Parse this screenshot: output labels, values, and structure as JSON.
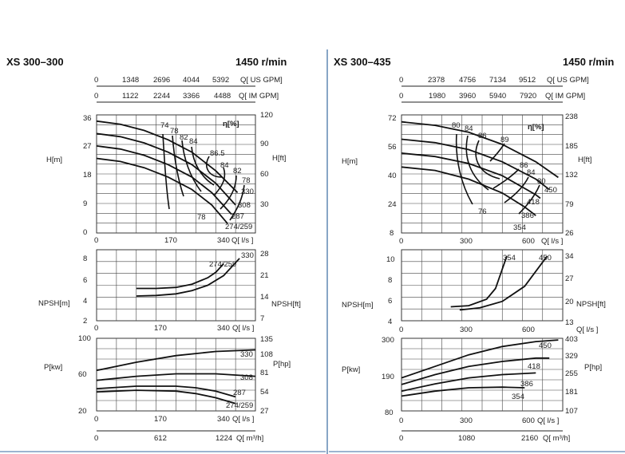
{
  "charts": [
    {
      "title": "XS 300–300",
      "speed": "1450 r/min",
      "scales": [
        {
          "ticks": [
            "0",
            "1348",
            "2696",
            "4044",
            "5392"
          ],
          "unit": "Q[ US GPM]"
        },
        {
          "ticks": [
            "0",
            "1122",
            "2244",
            "3366",
            "4488"
          ],
          "unit": "Q[ IM GPM]"
        }
      ],
      "m3h_ticks": [
        "0",
        "612",
        "1224"
      ],
      "m3h_unit": "Q[ m³/h]",
      "xticks_ls": [
        "0",
        "170",
        "340"
      ],
      "head": {
        "ylabel": "H[m]",
        "ylabel_ft": "H[ft]",
        "yticks": [
          "0",
          "9",
          "18",
          "27",
          "36"
        ],
        "yticks_ft": [
          "30",
          "60",
          "90",
          "120"
        ],
        "xunit": "Q[ l/s ]",
        "eff_label": "η[%]",
        "diam_labels": [
          "330",
          "308",
          "287",
          "274/259"
        ],
        "eff_labels": [
          "74",
          "78",
          "82",
          "84",
          "86.5",
          "84",
          "82",
          "78",
          "78"
        ]
      },
      "npsh": {
        "ylabel": "NPSH[m]",
        "ylabel_ft": "NPSH[ft]",
        "yticks": [
          "2",
          "4",
          "6",
          "8"
        ],
        "yticks_ft": [
          "7",
          "14",
          "21",
          "28"
        ],
        "xunit": "Q[ l/s ]",
        "labels": [
          "330",
          "274/259"
        ]
      },
      "power": {
        "ylabel": "P[kw]",
        "ylabel_hp": "P[hp]",
        "yticks": [
          "20",
          "60",
          "100"
        ],
        "yticks_hp": [
          "27",
          "54",
          "81",
          "108",
          "135"
        ],
        "xunit": "Q[ l/s ]",
        "labels": [
          "330",
          "308",
          "287",
          "274/259"
        ]
      }
    },
    {
      "title": "XS 300–435",
      "speed": "1450 r/min",
      "scales": [
        {
          "ticks": [
            "0",
            "2378",
            "4756",
            "7134",
            "9512"
          ],
          "unit": "Q[ US GPM]"
        },
        {
          "ticks": [
            "0",
            "1980",
            "3960",
            "5940",
            "7920"
          ],
          "unit": "Q[ IM GPM]"
        }
      ],
      "m3h_ticks": [
        "0",
        "1080",
        "2160"
      ],
      "m3h_unit": "Q[ m³/h]",
      "xticks_ls": [
        "0",
        "300",
        "600"
      ],
      "head": {
        "ylabel": "H[m]",
        "ylabel_ft": "H[ft]",
        "yticks": [
          "8",
          "24",
          "40",
          "56",
          "72"
        ],
        "yticks_ft": [
          "26",
          "79",
          "132",
          "185",
          "238"
        ],
        "xunit": "Q[ l/s ]",
        "eff_label": "η[%]",
        "diam_labels": [
          "450",
          "418",
          "386",
          "354"
        ],
        "eff_labels": [
          "80",
          "84",
          "86",
          "89",
          "86",
          "84",
          "80",
          "76"
        ]
      },
      "npsh": {
        "ylabel": "NPSH[m]",
        "ylabel_ft": "NPSH[ft]",
        "yticks": [
          "4",
          "6",
          "8",
          "10"
        ],
        "yticks_ft": [
          "13",
          "20",
          "27",
          "34"
        ],
        "xunit": "Q[ l/s ]",
        "labels": [
          "354",
          "450"
        ]
      },
      "power": {
        "ylabel": "P[kw]",
        "ylabel_hp": "P[hp]",
        "yticks": [
          "80",
          "190",
          "300"
        ],
        "yticks_hp": [
          "107",
          "181",
          "255",
          "329",
          "403"
        ],
        "xunit": "Q[ l/s ]",
        "labels": [
          "450",
          "418",
          "386",
          "354"
        ]
      }
    }
  ],
  "chart_data": [
    {
      "type": "line",
      "title": "XS 300–300",
      "subtitle": "1450 r/min",
      "xlabel": "Q[ l/s ]",
      "xlim": [
        0,
        400
      ],
      "panels": [
        {
          "name": "H[m]",
          "ylim": [
            0,
            38
          ],
          "series": [
            {
              "name": "330",
              "x": [
                0,
                60,
                120,
                180,
                240,
                300,
                355
              ],
              "y": [
                36,
                35,
                33,
                30,
                26,
                20,
                13
              ]
            },
            {
              "name": "308",
              "x": [
                0,
                60,
                120,
                180,
                240,
                300,
                350
              ],
              "y": [
                32,
                31,
                29,
                26,
                22,
                16,
                9
              ]
            },
            {
              "name": "287",
              "x": [
                0,
                60,
                120,
                180,
                240,
                290,
                340
              ],
              "y": [
                28,
                27,
                25,
                22,
                18,
                13,
                6
              ]
            },
            {
              "name": "274/259",
              "x": [
                0,
                60,
                120,
                180,
                240,
                290,
                330
              ],
              "y": [
                24,
                23,
                21,
                18,
                14,
                9,
                3
              ]
            }
          ]
        },
        {
          "name": "NPSH[m]",
          "ylim": [
            2,
            8.6
          ],
          "series": [
            {
              "name": "330",
              "x": [
                100,
                150,
                200,
                240,
                280,
                320,
                360
              ],
              "y": [
                4.3,
                4.35,
                4.5,
                4.8,
                5.3,
                6.2,
                7.8
              ]
            },
            {
              "name": "274/259",
              "x": [
                100,
                150,
                200,
                240,
                280,
                300,
                320
              ],
              "y": [
                5.0,
                5.0,
                5.1,
                5.4,
                6.0,
                6.5,
                7.3
              ]
            }
          ]
        },
        {
          "name": "P[kw]",
          "ylim": [
            16,
            104
          ],
          "series": [
            {
              "name": "330",
              "x": [
                0,
                100,
                200,
                300,
                400
              ],
              "y": [
                65,
                75,
                83,
                88,
                90
              ]
            },
            {
              "name": "308",
              "x": [
                0,
                100,
                200,
                300,
                400
              ],
              "y": [
                53,
                58,
                61,
                61,
                58
              ]
            },
            {
              "name": "287",
              "x": [
                0,
                100,
                200,
                250,
                300,
                350
              ],
              "y": [
                43,
                46,
                46,
                44,
                40,
                33
              ]
            },
            {
              "name": "274/259",
              "x": [
                0,
                100,
                200,
                250,
                300,
                350
              ],
              "y": [
                39,
                41,
                40,
                37,
                32,
                25
              ]
            }
          ]
        }
      ]
    },
    {
      "type": "line",
      "title": "XS 300–435",
      "subtitle": "1450 r/min",
      "xlabel": "Q[ l/s ]",
      "xlim": [
        0,
        720
      ],
      "panels": [
        {
          "name": "H[m]",
          "ylim": [
            8,
            76
          ],
          "series": [
            {
              "name": "450",
              "x": [
                0,
                150,
                300,
                450,
                600,
                700
              ],
              "y": [
                72,
                70,
                66,
                59,
                49,
                40
              ]
            },
            {
              "name": "418",
              "x": [
                0,
                150,
                300,
                450,
                600,
                660
              ],
              "y": [
                62,
                60,
                56,
                49,
                39,
                33
              ]
            },
            {
              "name": "386",
              "x": [
                0,
                150,
                300,
                450,
                600,
                620
              ],
              "y": [
                54,
                52,
                48,
                41,
                30,
                28
              ]
            },
            {
              "name": "354",
              "x": [
                0,
                150,
                300,
                450,
                550,
                600
              ],
              "y": [
                46,
                44,
                39,
                31,
                23,
                18
              ]
            }
          ]
        },
        {
          "name": "NPSH[m]",
          "ylim": [
            4,
            10.6
          ],
          "series": [
            {
              "name": "354",
              "x": [
                220,
                300,
                380,
                420,
                470
              ],
              "y": [
                5.3,
                5.4,
                6.0,
                7.0,
                10.0
              ]
            },
            {
              "name": "450",
              "x": [
                260,
                350,
                450,
                550,
                650
              ],
              "y": [
                5.0,
                5.2,
                5.8,
                7.2,
                10.0
              ]
            }
          ]
        },
        {
          "name": "P[kw]",
          "ylim": [
            80,
            300
          ],
          "series": [
            {
              "name": "450",
              "x": [
                0,
                150,
                300,
                450,
                600,
                700
              ],
              "y": [
                180,
                215,
                250,
                275,
                290,
                295
              ]
            },
            {
              "name": "418",
              "x": [
                0,
                150,
                300,
                450,
                600,
                660
              ],
              "y": [
                160,
                190,
                215,
                230,
                240,
                240
              ]
            },
            {
              "name": "386",
              "x": [
                0,
                150,
                300,
                450,
                600
              ],
              "y": [
                140,
                162,
                180,
                190,
                195
              ]
            },
            {
              "name": "354",
              "x": [
                0,
                150,
                300,
                450,
                550
              ],
              "y": [
                125,
                140,
                150,
                152,
                150
              ]
            }
          ]
        }
      ]
    }
  ]
}
